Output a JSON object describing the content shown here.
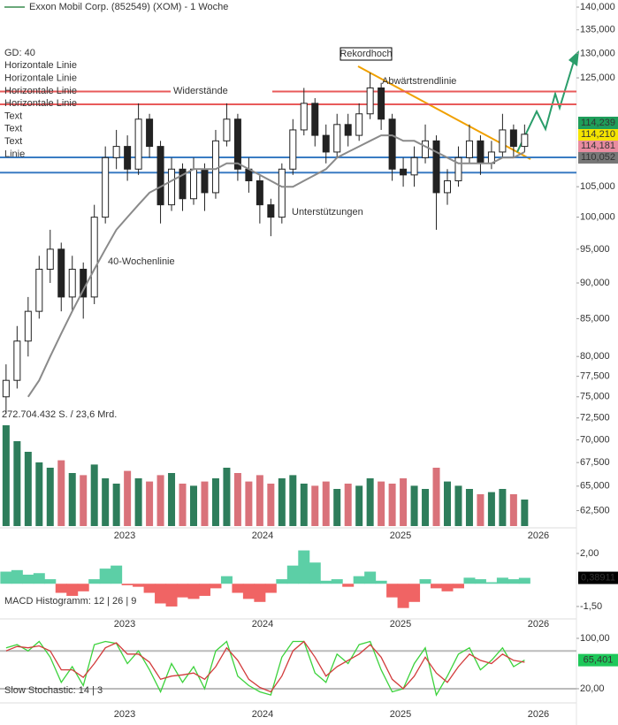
{
  "header": {
    "title": "Exxon Mobil Corp. (852549) (XOM) - 1 Woche"
  },
  "chart_data": [
    {
      "type": "candlestick",
      "log": true,
      "xlim": [
        2022.096,
        2026.276
      ],
      "xticks": [
        2023,
        2024,
        2025,
        2026
      ],
      "ylim": [
        60.8,
        141.6
      ],
      "yticks": [
        {
          "value": 140,
          "label": "140,000"
        },
        {
          "value": 135,
          "label": "135,000"
        },
        {
          "value": 130,
          "label": "130,000"
        },
        {
          "value": 125,
          "label": "125,000"
        },
        {
          "value": 105,
          "label": "105,000"
        },
        {
          "value": 100,
          "label": "100,000"
        },
        {
          "value": 95,
          "label": "95,000"
        },
        {
          "value": 90,
          "label": "90,000"
        },
        {
          "value": 85,
          "label": "85,000"
        },
        {
          "value": 80,
          "label": "80,000"
        },
        {
          "value": 77.5,
          "label": "77,500"
        },
        {
          "value": 75,
          "label": "75,000"
        },
        {
          "value": 72.5,
          "label": "72,500"
        },
        {
          "value": 70,
          "label": "70,000"
        },
        {
          "value": 67.5,
          "label": "67,500"
        },
        {
          "value": 65,
          "label": "65,000"
        },
        {
          "value": 62.5,
          "label": "62,500"
        }
      ],
      "x": [
        2022.14,
        2022.22,
        2022.3,
        2022.38,
        2022.46,
        2022.54,
        2022.62,
        2022.7,
        2022.78,
        2022.86,
        2022.94,
        2023.02,
        2023.1,
        2023.18,
        2023.26,
        2023.34,
        2023.42,
        2023.5,
        2023.58,
        2023.66,
        2023.74,
        2023.82,
        2023.9,
        2023.98,
        2024.06,
        2024.14,
        2024.22,
        2024.3,
        2024.38,
        2024.46,
        2024.54,
        2024.62,
        2024.7,
        2024.78,
        2024.86,
        2024.94,
        2025.02,
        2025.1,
        2025.18,
        2025.26,
        2025.34,
        2025.42,
        2025.5,
        2025.58,
        2025.66,
        2025.74,
        2025.82,
        2025.9
      ],
      "open": [
        75,
        77,
        82,
        86,
        92,
        95,
        88,
        92,
        88,
        100,
        110,
        112,
        108,
        117,
        112,
        102,
        108,
        103,
        108,
        104,
        113,
        117,
        108,
        106,
        102,
        100,
        108,
        115,
        120,
        114,
        111,
        116,
        114,
        118,
        123,
        117,
        108,
        107,
        110,
        113,
        104,
        106,
        110,
        113,
        109,
        111,
        115,
        112
      ],
      "high": [
        79,
        84,
        88,
        94,
        98,
        96,
        94,
        93,
        102,
        112,
        115,
        114,
        120,
        118,
        113,
        110,
        109,
        110,
        109,
        115,
        120,
        118,
        110,
        107,
        103,
        109,
        117,
        123,
        121,
        116,
        118,
        118,
        120,
        126,
        124,
        118,
        110,
        112,
        116,
        114,
        108,
        112,
        116,
        114,
        113,
        118,
        116,
        116
      ],
      "low": [
        73,
        76,
        80,
        85,
        90,
        86,
        86,
        85,
        87,
        99,
        108,
        106,
        107,
        110,
        99,
        101,
        101,
        102,
        101,
        103,
        112,
        106,
        104,
        99,
        97,
        99,
        107,
        114,
        112,
        109,
        110,
        112,
        113,
        117,
        115,
        106,
        105,
        105,
        109,
        98,
        102,
        105,
        109,
        107,
        108,
        110,
        110,
        111
      ],
      "close": [
        77,
        82,
        86,
        92,
        95,
        88,
        92,
        88,
        100,
        110,
        112,
        108,
        117,
        112,
        102,
        108,
        103,
        108,
        104,
        113,
        117,
        108,
        106,
        102,
        100,
        108,
        115,
        120,
        114,
        111,
        116,
        114,
        118,
        123,
        117,
        108,
        107,
        110,
        113,
        104,
        106,
        110,
        113,
        109,
        111,
        115,
        112,
        114.2
      ],
      "series": [
        {
          "name": "GD: 40",
          "color": "#8a8a8a",
          "values": [
            null,
            null,
            75,
            77,
            80,
            83,
            86,
            89,
            92,
            95,
            98,
            100,
            102,
            104,
            105,
            106,
            107,
            108,
            108,
            108,
            109,
            109,
            108,
            107,
            106,
            105,
            105,
            106,
            107,
            108,
            110,
            111,
            112,
            113,
            114,
            114,
            113,
            113,
            112,
            111,
            110,
            109,
            109,
            109,
            109,
            110,
            110,
            111
          ]
        }
      ],
      "hlines": [
        {
          "name": "Horizontale Linie",
          "value": 122.3,
          "color": "#e85a5a"
        },
        {
          "name": "Horizontale Linie",
          "value": 119.8,
          "color": "#e85a5a"
        },
        {
          "name": "Horizontale Linie",
          "value": 110.05,
          "color": "#3a7cc3"
        },
        {
          "name": "Horizontale Linie",
          "value": 107.4,
          "color": "#3a7cc3"
        }
      ],
      "legend_extra": [
        {
          "name": "Text",
          "color": "#222222"
        },
        {
          "name": "Text",
          "color": "#222222"
        },
        {
          "name": "Text",
          "color": "#222222"
        },
        {
          "name": "Linie",
          "color": "#f0a000"
        }
      ],
      "annotations": [
        {
          "text": "Widerstände",
          "color": "#e85a5a"
        },
        {
          "text": "Unterstützungen",
          "color": "#3a7cc3"
        },
        {
          "text": "40-Wochenlinie",
          "color": "#8a8a8a"
        },
        {
          "text": "Rekordhoch",
          "color": "#000000"
        },
        {
          "text": "Abwärtstrendlinie",
          "color": "#f0a000"
        }
      ],
      "badges": [
        {
          "value": 114.239,
          "label": "114,239",
          "color": "#1e9e5a",
          "text_color": "#ffffff"
        },
        {
          "value": 114.21,
          "label": "114,210",
          "color": "#f5e400",
          "text_color": "#000000"
        },
        {
          "value": 114.181,
          "label": "114,181",
          "color": "#e98ca0",
          "text_color": "#ffffff"
        },
        {
          "value": 110.052,
          "label": "110,052",
          "color": "#777777",
          "text_color": "#ffffff"
        }
      ]
    },
    {
      "type": "bar",
      "label": "272.704.432 S. / 23,6 Mrd.",
      "ylim": [
        0,
        100
      ],
      "up_color": "#2e7d5b",
      "down_color": "#d9727a",
      "values": [
        95,
        80,
        70,
        60,
        55,
        62,
        50,
        48,
        58,
        45,
        40,
        52,
        45,
        42,
        48,
        50,
        40,
        38,
        42,
        45,
        55,
        50,
        42,
        48,
        40,
        45,
        48,
        40,
        38,
        42,
        35,
        40,
        38,
        45,
        42,
        40,
        45,
        38,
        35,
        55,
        42,
        38,
        35,
        30,
        32,
        35,
        30,
        25
      ]
    },
    {
      "type": "bar",
      "label": "MACD Histogramm: 12 | 26 | 9",
      "ylim": [
        -2.32,
        2.64
      ],
      "pos_color": "#5ccfa6",
      "neg_color": "#f06464",
      "xticks": [
        2023,
        2024,
        2025,
        2026
      ],
      "yticks": [
        {
          "value": 2,
          "label": "2,00"
        },
        {
          "value": -1.5,
          "label": "-1,50"
        }
      ],
      "badge": {
        "value": 0.38911,
        "label": "0,38911",
        "color": "#000000",
        "text_color": "#ffffff"
      },
      "values": [
        0.8,
        0.9,
        0.6,
        0.7,
        0.3,
        -0.6,
        -0.8,
        -0.5,
        0.3,
        1.0,
        1.2,
        -0.1,
        -0.2,
        -0.6,
        -1.3,
        -1.5,
        -0.9,
        -1.0,
        -0.8,
        -0.3,
        0.5,
        -0.6,
        -1.0,
        -1.2,
        -0.6,
        0.3,
        1.2,
        2.2,
        1.4,
        0.2,
        0.3,
        -0.2,
        0.5,
        0.8,
        0.2,
        -0.9,
        -1.6,
        -1.2,
        0.3,
        -0.3,
        -0.5,
        -0.3,
        0.4,
        0.3,
        0.1,
        0.4,
        0.3,
        0.39
      ]
    },
    {
      "type": "line",
      "label": "Slow Stochastic: 14 | 3",
      "ylim": [
        -2.5,
        114
      ],
      "xticks": [
        2023,
        2024,
        2025,
        2026
      ],
      "yticks": [
        {
          "value": 100,
          "label": "100,00"
        },
        {
          "value": 20,
          "label": "20,00"
        }
      ],
      "hlines": [
        80,
        20
      ],
      "badge": {
        "value": 65.401,
        "label": "65,401",
        "color": "#1ec85a",
        "text_color": "#000000"
      },
      "series": [
        {
          "color": "#3cd23c",
          "values": [
            85,
            90,
            80,
            95,
            70,
            30,
            55,
            25,
            90,
            95,
            92,
            60,
            80,
            50,
            15,
            60,
            30,
            55,
            20,
            80,
            95,
            40,
            25,
            15,
            10,
            70,
            95,
            95,
            45,
            30,
            75,
            60,
            90,
            95,
            50,
            15,
            20,
            60,
            85,
            10,
            40,
            75,
            85,
            50,
            65,
            85,
            55,
            65.4
          ]
        },
        {
          "color": "#d23c3c",
          "values": [
            80,
            87,
            85,
            88,
            80,
            50,
            50,
            38,
            60,
            85,
            93,
            75,
            75,
            62,
            35,
            40,
            42,
            45,
            35,
            55,
            85,
            65,
            35,
            22,
            15,
            40,
            80,
            95,
            70,
            40,
            55,
            65,
            75,
            90,
            70,
            35,
            20,
            40,
            70,
            45,
            30,
            55,
            75,
            65,
            60,
            75,
            65,
            62
          ]
        }
      ]
    }
  ]
}
